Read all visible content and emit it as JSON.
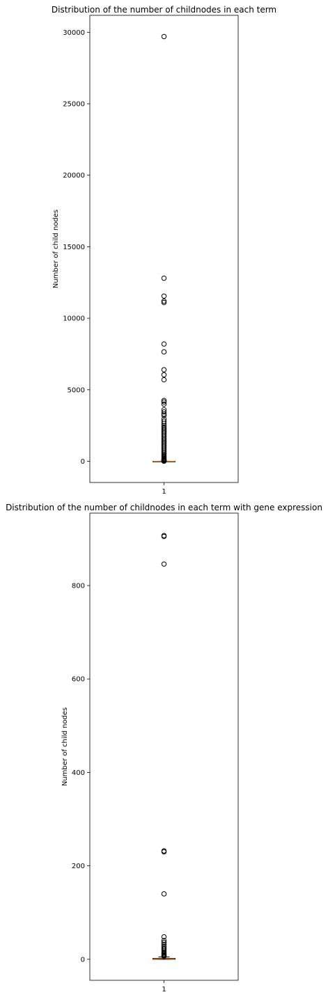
{
  "chart_data": [
    {
      "type": "box",
      "title": "Distribution of the number of childnodes in each term",
      "ylabel": "Number of child nodes",
      "xlabel": "",
      "categories": [
        "1"
      ],
      "ylim": [
        -1485,
        31185
      ],
      "yticks": [
        0,
        5000,
        10000,
        15000,
        20000,
        25000,
        30000
      ],
      "ytick_labels": [
        "0",
        "5000",
        "10000",
        "15000",
        "20000",
        "25000",
        "30000"
      ],
      "box": {
        "q1": 0,
        "median": 1,
        "q3": 2,
        "whisker_low": 0,
        "whisker_high": 5
      },
      "outliers": [
        29700,
        12800,
        11550,
        11200,
        11100,
        8200,
        7650,
        6400,
        6050,
        5700,
        4250,
        4150,
        4000,
        3600,
        3450,
        3300,
        3200,
        2950,
        2800,
        2650,
        2500,
        2400,
        2300,
        2200,
        2100,
        2000,
        1900,
        1800,
        1700,
        1600,
        1500,
        1400,
        1300,
        1200,
        1100,
        1000,
        900,
        800,
        700,
        600,
        500,
        420,
        350,
        280,
        220,
        170,
        130,
        100,
        80,
        60,
        45,
        30,
        20,
        12,
        8
      ],
      "grid": false,
      "legend": "none",
      "colors": {
        "median": "#ff7f0e",
        "box": "#000000",
        "outlier": "#000000"
      }
    },
    {
      "type": "box",
      "title": "Distribution of the number of childnodes in each term with gene expression",
      "ylabel": "Number of child nodes",
      "xlabel": "",
      "categories": [
        "1"
      ],
      "ylim": [
        -45,
        955
      ],
      "yticks": [
        0,
        200,
        400,
        600,
        800
      ],
      "ytick_labels": [
        "0",
        "200",
        "400",
        "600",
        "800"
      ],
      "box": {
        "q1": 0,
        "median": 1,
        "q3": 2,
        "whisker_low": 0,
        "whisker_high": 5
      },
      "outliers": [
        907,
        905,
        846,
        232,
        230,
        140,
        48,
        40,
        36,
        32,
        28,
        25,
        22,
        19,
        16,
        14,
        12,
        10,
        9,
        8,
        7,
        6
      ],
      "grid": false,
      "legend": "none",
      "colors": {
        "median": "#ff7f0e",
        "box": "#000000",
        "outlier": "#000000"
      }
    }
  ]
}
